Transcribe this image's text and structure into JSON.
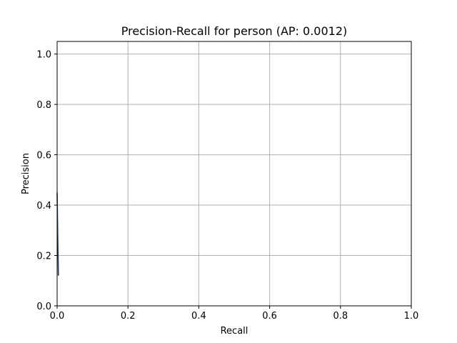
{
  "chart_data": {
    "type": "line",
    "title": "Precision-Recall for person (AP: 0.0012)",
    "xlabel": "Recall",
    "ylabel": "Precision",
    "xlim": [
      0.0,
      1.0
    ],
    "ylim": [
      0.0,
      1.05
    ],
    "xticks": [
      "0.0",
      "0.2",
      "0.4",
      "0.6",
      "0.8",
      "1.0"
    ],
    "yticks": [
      "0.0",
      "0.2",
      "0.4",
      "0.6",
      "0.8",
      "1.0"
    ],
    "grid": true,
    "legend": "none",
    "series": [
      {
        "color": "#1f3a5f",
        "x": [
          0.0,
          0.001,
          0.002,
          0.003,
          0.0035
        ],
        "y": [
          0.45,
          0.35,
          0.25,
          0.17,
          0.12
        ]
      }
    ]
  }
}
